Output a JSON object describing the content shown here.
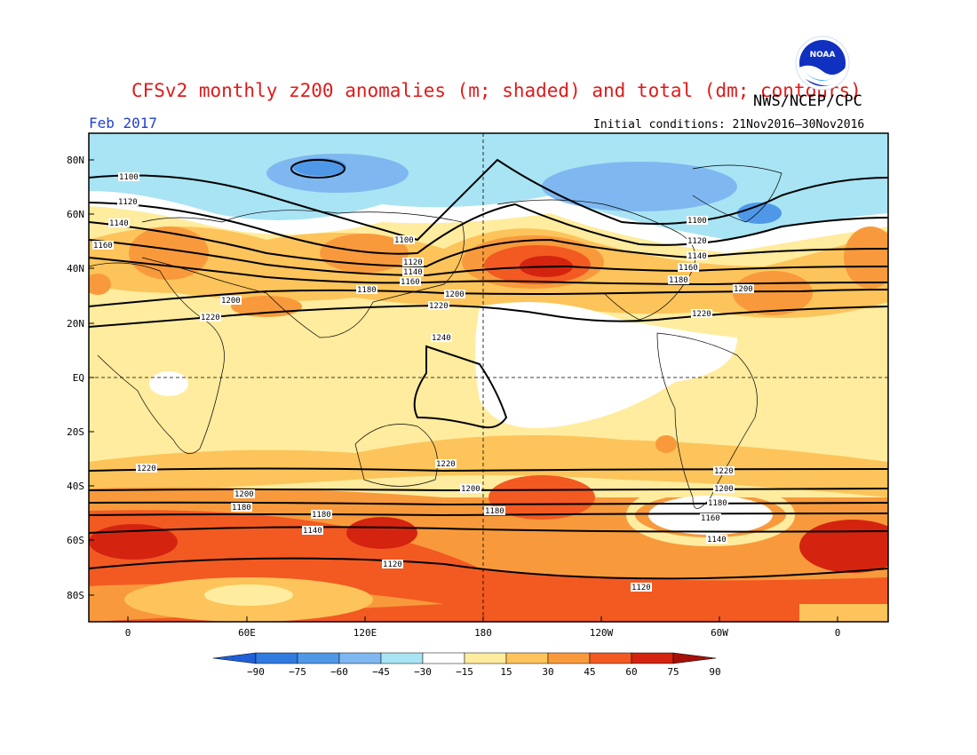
{
  "title": "CFSv2 monthly z200 anomalies (m; shaded) and total (dm; contours)",
  "organization": "NWS/NCEP/CPC",
  "month": "Feb 2017",
  "initial_conditions": "Initial conditions: 21Nov2016–30Nov2016",
  "logo_text": "NOAA",
  "lat_labels": [
    "80N",
    "60N",
    "40N",
    "20N",
    "EQ",
    "20S",
    "40S",
    "60S",
    "80S"
  ],
  "lon_labels": [
    "0",
    "60E",
    "120E",
    "180",
    "120W",
    "60W",
    "0"
  ],
  "colorbar": {
    "ticks": [
      "−90",
      "−75",
      "−60",
      "−45",
      "−30",
      "−15",
      "15",
      "30",
      "45",
      "60",
      "75",
      "90"
    ],
    "colors": [
      "#1f5fd8",
      "#2f7be0",
      "#4f98e8",
      "#7fb8f0",
      "#a8e4f4",
      "#ffffff",
      "#ffec9e",
      "#fcc45a",
      "#f89a3c",
      "#f25a22",
      "#d42410",
      "#a51008"
    ]
  },
  "contour_labels": {
    "1100": "1100",
    "1120": "1120",
    "1140": "1140",
    "1160": "1160",
    "1180": "1180",
    "1200": "1200",
    "1220": "1220",
    "1240": "1240"
  }
}
